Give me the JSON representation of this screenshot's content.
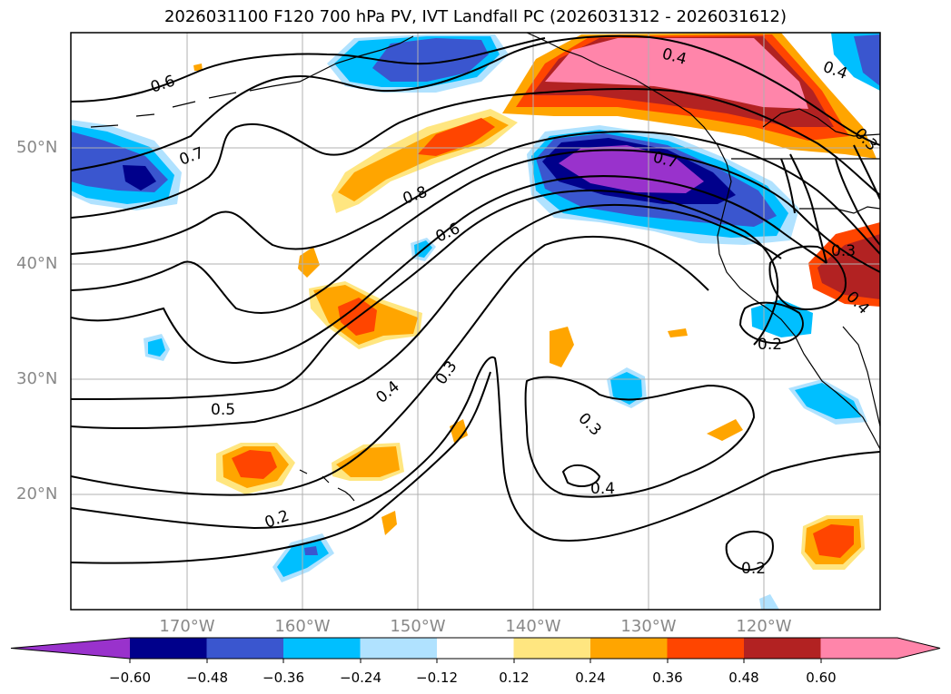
{
  "title": "2026031100 F120 700 hPa PV, IVT Landfall PC (2026031312 - 2026031612)",
  "map": {
    "region": "North Pacific / West Coast of North America",
    "longitude_labels": [
      "170°W",
      "160°W",
      "150°W",
      "140°W",
      "130°W",
      "120°W"
    ],
    "latitude_labels": [
      "50°N",
      "40°N",
      "30°N",
      "20°N"
    ],
    "contour_labels": [
      "0.6",
      "0.7",
      "0.8",
      "0.6",
      "0.4",
      "0.7",
      "0.4",
      "0.3",
      "0.3",
      "0.5",
      "0.4",
      "0.3",
      "0.3",
      "0.4",
      "0.2",
      "0.4",
      "0.2",
      "0.2"
    ]
  },
  "colorbar": {
    "extend": "both",
    "tick_labels": [
      "−0.60",
      "−0.48",
      "−0.36",
      "−0.24",
      "−0.12",
      "0.12",
      "0.24",
      "0.36",
      "0.48",
      "0.60"
    ],
    "colors": [
      "#9932cc",
      "#00008b",
      "#3a56cf",
      "#00bfff",
      "#b0e2ff",
      "#ffffff",
      "#ffe680",
      "#ffa500",
      "#ff4500",
      "#b22222",
      "#ff85aa",
      "#ff85aa"
    ],
    "bounds": [
      -0.72,
      -0.6,
      -0.48,
      -0.36,
      -0.24,
      -0.12,
      0.12,
      0.24,
      0.36,
      0.48,
      0.6,
      0.72
    ]
  }
}
